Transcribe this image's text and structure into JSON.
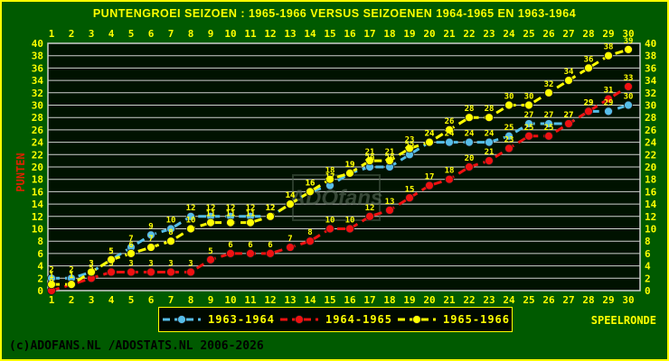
{
  "title": "PUNTENGROEI  SEIZOEN : 1965-1966 VERSUS SEIZOENEN 1964-1965 EN 1963-1964",
  "footer": "(c)ADOFANS.NL /ADOSTATS.NL 2006-2026",
  "watermark": "ADOfans",
  "axis": {
    "xlabel": "SPEELRONDE",
    "ylabel": "PUNTEN"
  },
  "colors": {
    "background": "#005a00",
    "plot_bg": "#001200",
    "grid": "#d0d0d0",
    "tick_text": "#ffff00",
    "title_text": "#ffff00",
    "ylabel_text": "#dd2200",
    "xlabel_text": "#ffff00",
    "legend_bg": "#000800",
    "legend_border": "#ffff00",
    "point_label": "#ffff00",
    "series_blue": "#56bde8",
    "series_red": "#ee1111",
    "series_yellow": "#ffff00"
  },
  "chart_data": {
    "type": "line",
    "title": "PUNTENGROEI SEIZOEN : 1965-1966 VERSUS SEIZOENEN 1964-1965 EN 1963-1964",
    "xlabel": "SPEELRONDE",
    "ylabel": "PUNTEN",
    "x": [
      1,
      2,
      3,
      4,
      5,
      6,
      7,
      8,
      9,
      10,
      11,
      12,
      13,
      14,
      15,
      16,
      17,
      18,
      19,
      20,
      21,
      22,
      23,
      24,
      25,
      26,
      27,
      28,
      29,
      30
    ],
    "ylim": [
      0,
      40
    ],
    "ytick_step": 2,
    "grid": true,
    "legend_position": "bottom",
    "marker": "circle",
    "line_style": "dashed",
    "series": [
      {
        "name": "1963-1964",
        "color": "#56bde8",
        "values": [
          2,
          2,
          3,
          5,
          7,
          9,
          10,
          12,
          12,
          12,
          12,
          12,
          14,
          16,
          17,
          19,
          20,
          20,
          22,
          24,
          24,
          24,
          24,
          25,
          27,
          27,
          27,
          29,
          29,
          30
        ]
      },
      {
        "name": "1964-1965",
        "color": "#ee1111",
        "values": [
          0,
          1,
          2,
          3,
          3,
          3,
          3,
          3,
          5,
          6,
          6,
          6,
          7,
          8,
          10,
          10,
          12,
          13,
          15,
          17,
          18,
          20,
          21,
          23,
          25,
          25,
          27,
          29,
          31,
          33
        ]
      },
      {
        "name": "1965-1966",
        "color": "#ffff00",
        "values": [
          1,
          1,
          3,
          5,
          6,
          7,
          8,
          10,
          11,
          11,
          11,
          12,
          14,
          16,
          18,
          19,
          21,
          21,
          23,
          24,
          26,
          28,
          28,
          30,
          30,
          32,
          34,
          36,
          38,
          39
        ]
      }
    ]
  }
}
